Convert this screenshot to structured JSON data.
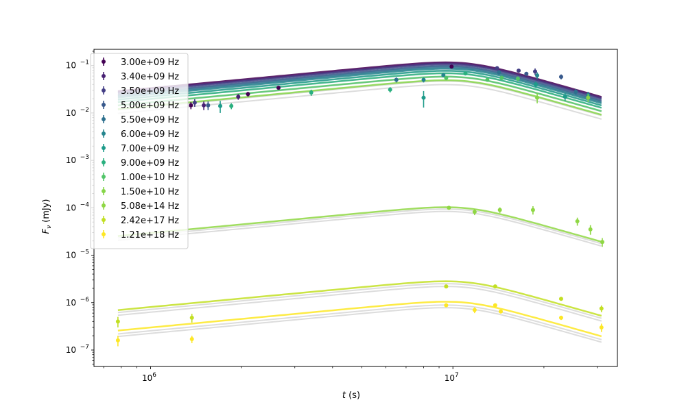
{
  "chart_data": {
    "type": "scatter",
    "title": "",
    "xlabel": "t (s)",
    "ylabel": "Fν (mJy)",
    "x_scale": "log",
    "y_scale": "log",
    "xlim": [
      650000,
      35000000
    ],
    "ylim": [
      4.5e-08,
      0.22
    ],
    "grid": false,
    "legend_position": "upper-left",
    "x_ticks": [
      {
        "value": 1000000,
        "base": "10",
        "exp": "6"
      },
      {
        "value": 10000000,
        "base": "10",
        "exp": "7"
      }
    ],
    "y_ticks": [
      {
        "value": 1e-07,
        "base": "10",
        "exp": "−7"
      },
      {
        "value": 1e-06,
        "base": "10",
        "exp": "−6"
      },
      {
        "value": 1e-05,
        "base": "10",
        "exp": "−5"
      },
      {
        "value": 0.0001,
        "base": "10",
        "exp": "−4"
      },
      {
        "value": 0.001,
        "base": "10",
        "exp": "−3"
      },
      {
        "value": 0.01,
        "base": "10",
        "exp": "−2"
      },
      {
        "value": 0.1,
        "base": "10",
        "exp": "−1"
      }
    ],
    "model_curve": {
      "t_start": 780000,
      "t_end": 31000000,
      "t_peak": 11000000,
      "rise_slope": 0.6,
      "decay_slope": -1.8,
      "smoothness": 3
    },
    "series": [
      {
        "name": "3.00e+09 Hz",
        "color": "#440154",
        "peak": 0.112,
        "points": [
          [
            1360000,
            0.0145,
            0.0025
          ],
          [
            2100000,
            0.025,
            0.003
          ],
          [
            2650000,
            0.034,
            0.003
          ],
          [
            9900000,
            0.095,
            0.006
          ]
        ]
      },
      {
        "name": "3.40e+09 Hz",
        "color": "#482173",
        "peak": 0.106,
        "points": [
          [
            1500000,
            0.0145,
            0.003
          ],
          [
            1950000,
            0.022,
            0.003
          ]
        ]
      },
      {
        "name": "3.50e+09 Hz",
        "color": "#433e85",
        "peak": 0.102,
        "points": [
          [
            1400000,
            0.0165,
            0.003
          ],
          [
            14000000,
            0.088,
            0.007
          ],
          [
            16500000,
            0.078,
            0.007
          ],
          [
            18700000,
            0.075,
            0.012
          ]
        ]
      },
      {
        "name": "5.00e+09 Hz",
        "color": "#38598c",
        "peak": 0.094,
        "points": [
          [
            1550000,
            0.0145,
            0.003
          ],
          [
            17500000,
            0.067,
            0.006
          ],
          [
            22800000,
            0.058,
            0.007
          ]
        ]
      },
      {
        "name": "5.50e+09 Hz",
        "color": "#2d708e",
        "peak": 0.088,
        "points": [
          [
            6500000,
            0.05,
            0.006
          ],
          [
            14200000,
            0.072,
            0.008
          ],
          [
            25500000,
            0.028,
            0.004
          ]
        ]
      },
      {
        "name": "6.00e+09 Hz",
        "color": "#25858e",
        "peak": 0.082,
        "points": [
          [
            8000000,
            0.05,
            0.006
          ],
          [
            9300000,
            0.063,
            0.006
          ],
          [
            19000000,
            0.062,
            0.01
          ],
          [
            28000000,
            0.024,
            0.004
          ]
        ]
      },
      {
        "name": "7.00e+09 Hz",
        "color": "#1e9b8a",
        "peak": 0.074,
        "points": [
          [
            1700000,
            0.014,
            0.004
          ],
          [
            8000000,
            0.021,
            0.008
          ],
          [
            18800000,
            0.04,
            0.006
          ],
          [
            23500000,
            0.022,
            0.004
          ]
        ]
      },
      {
        "name": "9.00e+09 Hz",
        "color": "#2ab07f",
        "peak": 0.066,
        "points": [
          [
            1850000,
            0.014,
            0.002
          ],
          [
            3400000,
            0.027,
            0.004
          ],
          [
            6200000,
            0.031,
            0.004
          ],
          [
            11000000,
            0.068,
            0.005
          ]
        ]
      },
      {
        "name": "1.00e+10 Hz",
        "color": "#52c569",
        "peak": 0.056,
        "points": [
          [
            9500000,
            0.055,
            0.006
          ],
          [
            13000000,
            0.05,
            0.004
          ],
          [
            14500000,
            0.055,
            0.006
          ],
          [
            16400000,
            0.053,
            0.006
          ]
        ]
      },
      {
        "name": "1.50e+10 Hz",
        "color": "#86d549",
        "peak": 0.047,
        "points": [
          [
            19000000,
            0.021,
            0.005
          ],
          [
            28000000,
            0.021,
            0.004
          ]
        ]
      },
      {
        "name": "5.08e+14 Hz",
        "color": "#8fd744",
        "peak": 9.85e-05,
        "points": [
          [
            9700000,
            0.0001,
            6e-06
          ],
          [
            11800000,
            8.2e-05,
            1.2e-05
          ],
          [
            14300000,
            9e-05,
            1.2e-05
          ],
          [
            18400000,
            9e-05,
            1.8e-05
          ],
          [
            25800000,
            5.2e-05,
            1e-05
          ],
          [
            28500000,
            3.5e-05,
            8e-06
          ],
          [
            31200000,
            1.9e-05,
            4e-06
          ]
        ]
      },
      {
        "name": "2.42e+17 Hz",
        "color": "#c2df23",
        "peak": 2.7e-06,
        "points": [
          [
            780000,
            4e-07,
            1e-07
          ],
          [
            1370000,
            4.8e-07,
            1e-07
          ],
          [
            9500000,
            2.2e-06,
            1.5e-07
          ],
          [
            13800000,
            2.2e-06,
            1.5e-07
          ],
          [
            22800000,
            1.2e-06,
            1e-07
          ],
          [
            31000000,
            7.5e-07,
            1.2e-07
          ]
        ]
      },
      {
        "name": "1.21e+18 Hz",
        "color": "#fde725",
        "peak": 1e-06,
        "points": [
          [
            780000,
            1.6e-07,
            4e-08
          ],
          [
            1370000,
            1.7e-07,
            3e-08
          ],
          [
            9500000,
            8.8e-07,
            7e-08
          ],
          [
            11800000,
            7e-07,
            1e-07
          ],
          [
            13800000,
            8.8e-07,
            8e-08
          ],
          [
            14400000,
            6.5e-07,
            5e-08
          ],
          [
            22800000,
            4.8e-07,
            5e-08
          ],
          [
            31000000,
            3e-07,
            6e-08
          ]
        ]
      }
    ],
    "gray_envelopes": [
      {
        "peak": 0.095
      },
      {
        "peak": 0.085
      },
      {
        "peak": 0.075
      },
      {
        "peak": 0.065
      },
      {
        "peak": 0.055
      },
      {
        "peak": 0.045
      },
      {
        "peak": 0.038
      },
      {
        "peak": 9e-05
      },
      {
        "peak": 8e-05
      },
      {
        "peak": 2.4e-06
      },
      {
        "peak": 2.1e-06
      },
      {
        "peak": 8.5e-07
      },
      {
        "peak": 7.5e-07
      }
    ]
  }
}
